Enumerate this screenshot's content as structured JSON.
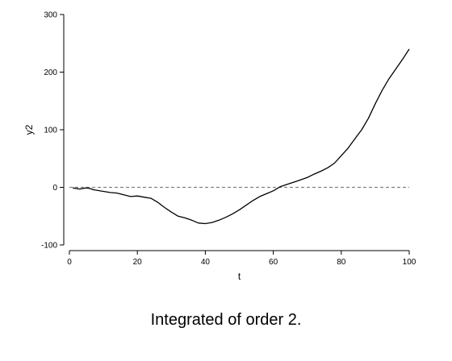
{
  "caption": "Integrated of order 2.",
  "chart_data": {
    "type": "line",
    "title": "",
    "xlabel": "t",
    "ylabel": "y2",
    "xlim": [
      0,
      100
    ],
    "ylim": [
      -100,
      300
    ],
    "x_ticks": [
      0,
      20,
      40,
      60,
      80,
      100
    ],
    "y_ticks": [
      -100,
      0,
      100,
      200,
      300
    ],
    "reference_line": {
      "y": 0,
      "style": "dashed",
      "color": "#808080"
    },
    "grid": false,
    "series": [
      {
        "color": "#000000",
        "x": [
          1,
          2,
          3,
          4,
          5,
          6,
          7,
          8,
          10,
          12,
          14,
          16,
          18,
          20,
          22,
          24,
          26,
          28,
          30,
          32,
          34,
          36,
          38,
          40,
          42,
          44,
          46,
          48,
          50,
          52,
          54,
          56,
          58,
          60,
          62,
          64,
          66,
          68,
          70,
          72,
          74,
          76,
          78,
          80,
          82,
          84,
          86,
          88,
          90,
          92,
          94,
          96,
          98,
          100
        ],
        "y": [
          -1,
          -2,
          -3,
          -2,
          -1,
          -2,
          -4,
          -5,
          -7,
          -9,
          -10,
          -13,
          -16,
          -15,
          -17,
          -19,
          -26,
          -35,
          -43,
          -50,
          -53,
          -57,
          -62,
          -63,
          -61,
          -57,
          -52,
          -46,
          -39,
          -31,
          -23,
          -16,
          -11,
          -6,
          1,
          5,
          9,
          13,
          17,
          23,
          28,
          34,
          42,
          55,
          68,
          84,
          100,
          120,
          145,
          168,
          188,
          205,
          222,
          240
        ]
      }
    ]
  }
}
